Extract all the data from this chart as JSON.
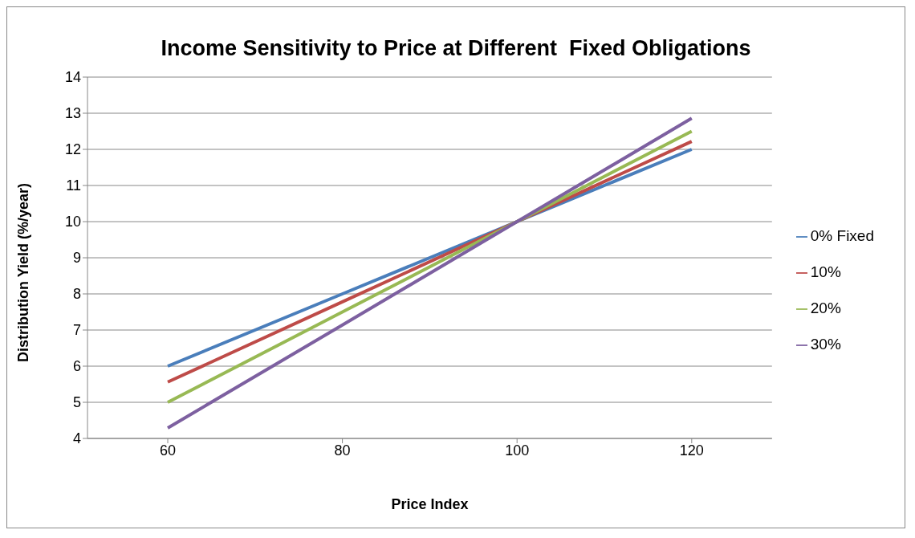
{
  "chart_data": {
    "type": "line",
    "title": "Income Sensitivity to Price at Different  Fixed Obligations",
    "xlabel": "Price Index",
    "ylabel": "Distribution Yield  (%/year)",
    "categories": [
      "60",
      "80",
      "100",
      "120"
    ],
    "series": [
      {
        "name": "0% Fixed",
        "color": "#4a7ebb",
        "values": [
          6,
          8,
          10,
          12
        ]
      },
      {
        "name": "10%",
        "color": "#be4b48",
        "values": [
          5.56,
          7.78,
          10,
          12.22
        ]
      },
      {
        "name": "20%",
        "color": "#98b954",
        "values": [
          5,
          7.5,
          10,
          12.5
        ]
      },
      {
        "name": "30%",
        "color": "#7d60a0",
        "values": [
          4.29,
          7.14,
          10,
          12.86
        ]
      }
    ],
    "ylim": [
      4,
      14
    ],
    "yticks": [
      4,
      5,
      6,
      7,
      8,
      9,
      10,
      11,
      12,
      13,
      14
    ],
    "grid": "y",
    "legend": "right",
    "marker": "none",
    "line_style": "solid"
  }
}
